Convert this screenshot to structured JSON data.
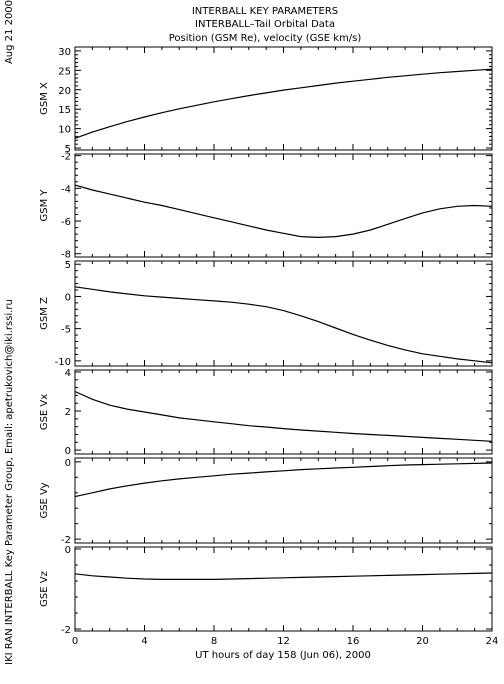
{
  "header": {
    "line1": "INTERBALL KEY PARAMETERS",
    "line2": "INTERBALL–Tail Orbital Data",
    "line3": "Position (GSM Re), velocity (GSE km/s)"
  },
  "side": {
    "date": "Aug 21 2000",
    "credit": "IKI RAN INTERBALL Key Parameter Group, Email: apetrukovich@iki.rssi.ru"
  },
  "x_axis": {
    "label": "UT hours of day 158 (Jun 06), 2000",
    "ticks": [
      0,
      4,
      8,
      12,
      16,
      20,
      24
    ],
    "range": [
      0,
      24
    ]
  },
  "chart_data": [
    {
      "type": "line",
      "ylabel": "GSM X",
      "ylim": [
        4.5,
        31
      ],
      "yticks": [
        5,
        10,
        15,
        20,
        25,
        30
      ],
      "x": [
        0,
        1,
        2,
        3,
        4,
        5,
        6,
        7,
        8,
        9,
        10,
        11,
        12,
        13,
        14,
        15,
        16,
        17,
        18,
        19,
        20,
        21,
        22,
        23,
        24
      ],
      "values": [
        7.5,
        9.1,
        10.5,
        11.8,
        13.0,
        14.1,
        15.1,
        16.0,
        16.9,
        17.7,
        18.5,
        19.2,
        19.9,
        20.5,
        21.1,
        21.7,
        22.2,
        22.7,
        23.2,
        23.6,
        24.0,
        24.4,
        24.7,
        25.0,
        25.3
      ]
    },
    {
      "type": "line",
      "ylabel": "GSM Y",
      "ylim": [
        -8.2,
        -1.9
      ],
      "yticks": [
        -8,
        -6,
        -4,
        -2
      ],
      "x": [
        0,
        1,
        2,
        3,
        4,
        5,
        6,
        7,
        8,
        9,
        10,
        11,
        12,
        13,
        14,
        15,
        16,
        17,
        18,
        19,
        20,
        21,
        22,
        23,
        24
      ],
      "values": [
        -3.8,
        -4.1,
        -4.35,
        -4.6,
        -4.85,
        -5.05,
        -5.3,
        -5.55,
        -5.8,
        -6.05,
        -6.3,
        -6.55,
        -6.75,
        -6.95,
        -7.0,
        -6.95,
        -6.8,
        -6.55,
        -6.2,
        -5.85,
        -5.5,
        -5.25,
        -5.1,
        -5.05,
        -5.1
      ]
    },
    {
      "type": "line",
      "ylabel": "GSM Z",
      "ylim": [
        -10.8,
        5.5
      ],
      "yticks": [
        -10,
        -5,
        0,
        5
      ],
      "x": [
        0,
        1,
        2,
        3,
        4,
        5,
        6,
        7,
        8,
        9,
        10,
        11,
        12,
        13,
        14,
        15,
        16,
        17,
        18,
        19,
        20,
        21,
        22,
        23,
        24
      ],
      "values": [
        1.5,
        1.1,
        0.7,
        0.4,
        0.1,
        -0.1,
        -0.3,
        -0.5,
        -0.7,
        -0.9,
        -1.2,
        -1.6,
        -2.2,
        -3.0,
        -3.9,
        -4.9,
        -5.9,
        -6.8,
        -7.6,
        -8.3,
        -8.9,
        -9.3,
        -9.7,
        -10.0,
        -10.3
      ]
    },
    {
      "type": "line",
      "ylabel": "GSE Vx",
      "ylim": [
        -0.2,
        4.1
      ],
      "yticks": [
        0,
        2,
        4
      ],
      "x": [
        0,
        1,
        2,
        3,
        4,
        5,
        6,
        7,
        8,
        9,
        10,
        11,
        12,
        13,
        14,
        15,
        16,
        17,
        18,
        19,
        20,
        21,
        22,
        23,
        24
      ],
      "values": [
        3.0,
        2.6,
        2.3,
        2.1,
        1.95,
        1.8,
        1.65,
        1.55,
        1.45,
        1.35,
        1.25,
        1.18,
        1.1,
        1.03,
        0.97,
        0.91,
        0.85,
        0.8,
        0.75,
        0.7,
        0.65,
        0.6,
        0.55,
        0.5,
        0.45
      ]
    },
    {
      "type": "line",
      "ylabel": "GSE Vy",
      "ylim": [
        -2.1,
        0.1
      ],
      "yticks": [
        -2,
        0
      ],
      "x": [
        0,
        1,
        2,
        3,
        4,
        5,
        6,
        7,
        8,
        9,
        10,
        11,
        12,
        13,
        14,
        15,
        16,
        17,
        18,
        19,
        20,
        21,
        22,
        23,
        24
      ],
      "values": [
        -0.9,
        -0.8,
        -0.7,
        -0.62,
        -0.55,
        -0.49,
        -0.44,
        -0.4,
        -0.36,
        -0.32,
        -0.29,
        -0.26,
        -0.23,
        -0.2,
        -0.18,
        -0.16,
        -0.14,
        -0.12,
        -0.1,
        -0.08,
        -0.07,
        -0.06,
        -0.05,
        -0.04,
        -0.03
      ]
    },
    {
      "type": "line",
      "ylabel": "GSE Vz",
      "ylim": [
        -2.05,
        0.05
      ],
      "yticks": [
        -2,
        0
      ],
      "x": [
        0,
        1,
        2,
        3,
        4,
        5,
        6,
        7,
        8,
        9,
        10,
        11,
        12,
        13,
        14,
        15,
        16,
        17,
        18,
        19,
        20,
        21,
        22,
        23,
        24
      ],
      "values": [
        -0.62,
        -0.67,
        -0.7,
        -0.73,
        -0.75,
        -0.76,
        -0.76,
        -0.76,
        -0.76,
        -0.75,
        -0.74,
        -0.73,
        -0.72,
        -0.71,
        -0.7,
        -0.69,
        -0.68,
        -0.67,
        -0.66,
        -0.65,
        -0.64,
        -0.63,
        -0.62,
        -0.61,
        -0.6
      ]
    }
  ]
}
